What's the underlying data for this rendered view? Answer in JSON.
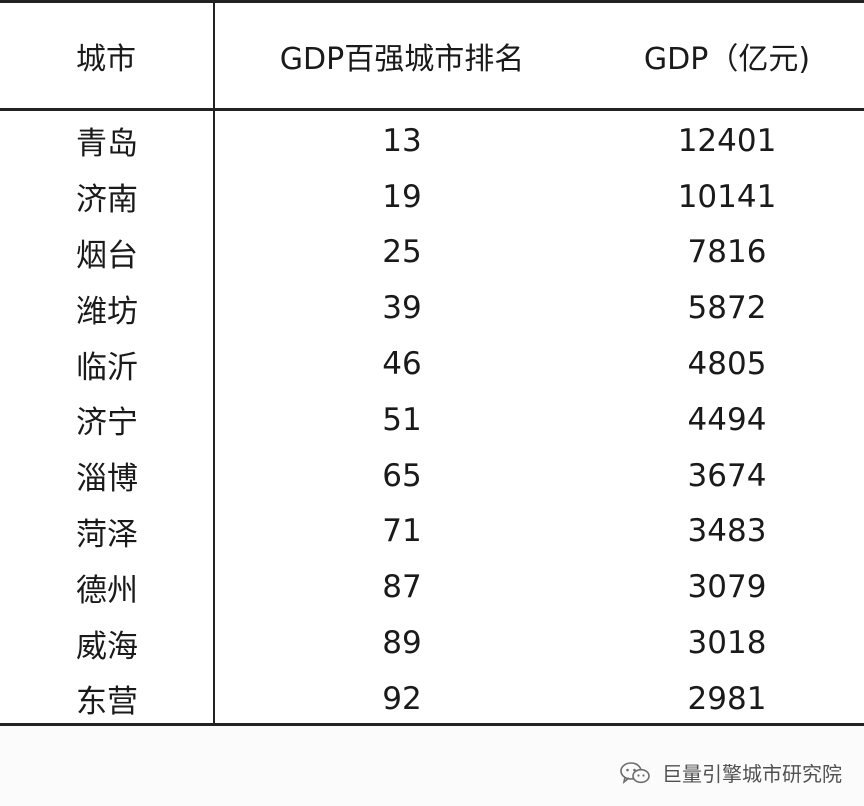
{
  "table": {
    "headers": {
      "city": "城市",
      "rank": "GDP百强城市排名",
      "gdp": "GDP（亿元)"
    },
    "rows": [
      {
        "city": "青岛",
        "rank": "13",
        "gdp": "12401"
      },
      {
        "city": "济南",
        "rank": "19",
        "gdp": "10141"
      },
      {
        "city": "烟台",
        "rank": "25",
        "gdp": "7816"
      },
      {
        "city": "潍坊",
        "rank": "39",
        "gdp": "5872"
      },
      {
        "city": "临沂",
        "rank": "46",
        "gdp": "4805"
      },
      {
        "city": "济宁",
        "rank": "51",
        "gdp": "4494"
      },
      {
        "city": "淄博",
        "rank": "65",
        "gdp": "3674"
      },
      {
        "city": "菏泽",
        "rank": "71",
        "gdp": "3483"
      },
      {
        "city": "德州",
        "rank": "87",
        "gdp": "3079"
      },
      {
        "city": "威海",
        "rank": "89",
        "gdp": "3018"
      },
      {
        "city": "东营",
        "rank": "92",
        "gdp": "2981"
      }
    ]
  },
  "footer": {
    "watermark_text": "巨量引擎城市研究院",
    "watermark_icon": "wechat-icon"
  }
}
